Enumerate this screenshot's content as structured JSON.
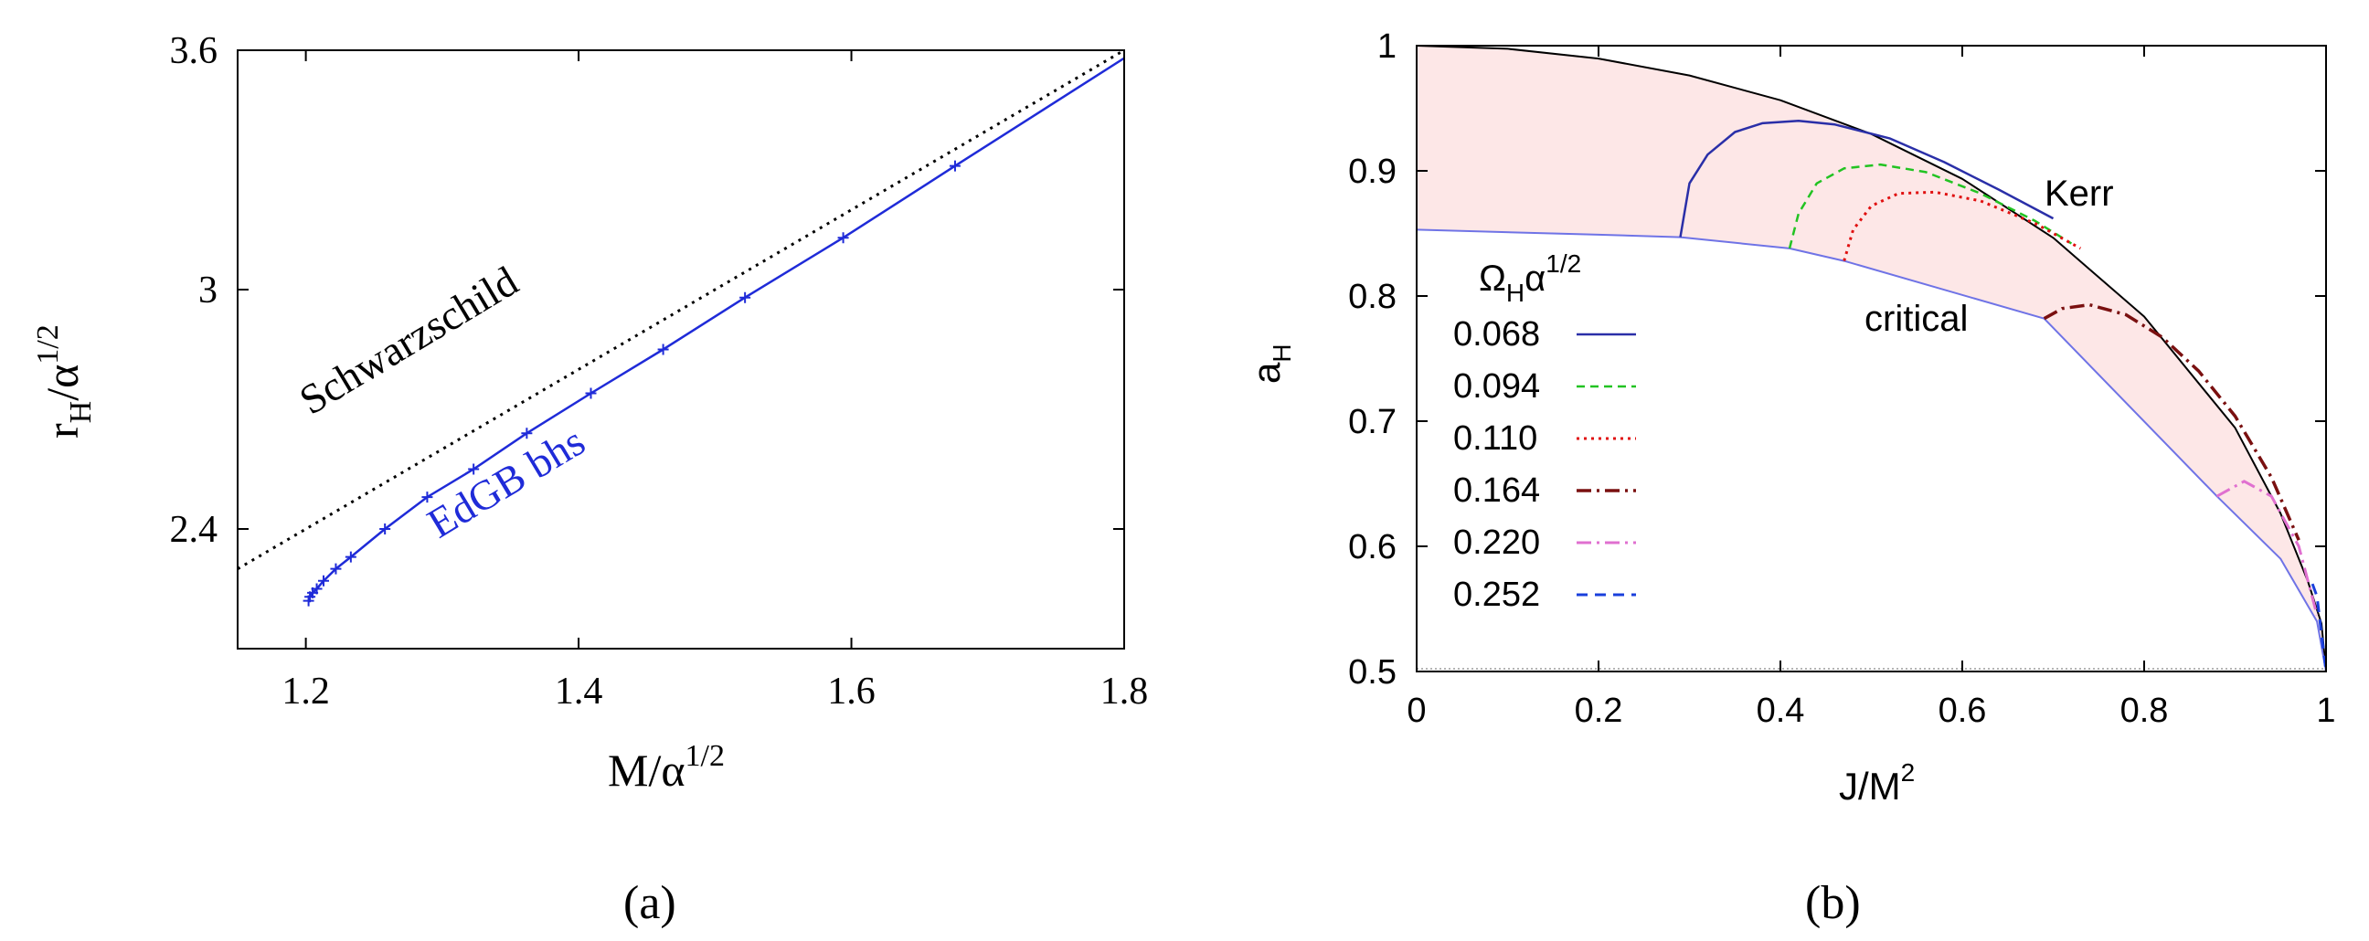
{
  "colors": {
    "axis": "#000000",
    "edgb_blue": "#1f2bd8",
    "fill_pink": "#fde7e7",
    "kerr_black": "#000000",
    "critical_blue": "#6f73e6",
    "base_gray": "#9a9a9a"
  },
  "panel_a": {
    "caption": "(a)",
    "xlabel_main": "M/α",
    "xlabel_sup": "1/2",
    "ylabel_main": "r",
    "ylabel_sub": "H",
    "ylabel_mid": "/α",
    "ylabel_sup": "1/2",
    "curve_label_schwarzschild": "Schwarzschild",
    "curve_label_edgb": "EdGB bhs",
    "xticks": [
      "1.2",
      "1.4",
      "1.6",
      "1.8"
    ],
    "yticks": [
      "2.4",
      "3",
      "3.6"
    ]
  },
  "panel_b": {
    "caption": "(b)",
    "xlabel_main": "J/M",
    "xlabel_sup": "2",
    "ylabel_main": "a",
    "ylabel_sub": "H",
    "label_kerr": "Kerr",
    "label_critical": "critical",
    "legend_title_main": "Ω",
    "legend_title_sub": "H",
    "legend_title_mid": "α",
    "legend_title_sup": "1/2",
    "legend_entries": [
      "0.068",
      "0.094",
      "0.110",
      "0.164",
      "0.220",
      "0.252"
    ],
    "xticks": [
      "0",
      "0.2",
      "0.4",
      "0.6",
      "0.8",
      "1"
    ],
    "yticks": [
      "0.5",
      "0.6",
      "0.7",
      "0.8",
      "0.9",
      "1"
    ]
  },
  "chart_data": [
    {
      "type": "line",
      "xlabel": "M/α^{1/2}",
      "ylabel": "r_H/α^{1/2}",
      "xlim": [
        1.15,
        1.8
      ],
      "ylim": [
        2.1,
        3.6
      ],
      "series": [
        {
          "name": "Schwarzschild",
          "style": "dotted",
          "x": [
            1.15,
            1.8
          ],
          "y": [
            2.3,
            3.6
          ]
        },
        {
          "name": "EdGB bhs",
          "style": "solid-with-markers",
          "x": [
            1.202,
            1.203,
            1.205,
            1.208,
            1.213,
            1.222,
            1.233,
            1.258,
            1.289,
            1.323,
            1.362,
            1.409,
            1.462,
            1.522,
            1.594,
            1.676,
            1.8
          ],
          "y": [
            2.22,
            2.23,
            2.24,
            2.25,
            2.27,
            2.3,
            2.33,
            2.4,
            2.48,
            2.55,
            2.64,
            2.74,
            2.85,
            2.98,
            3.13,
            3.31,
            3.58
          ]
        }
      ]
    },
    {
      "type": "line",
      "xlabel": "J/M^2",
      "ylabel": "a_H",
      "xlim": [
        0,
        1
      ],
      "ylim": [
        0.5,
        1
      ],
      "series": [
        {
          "name": "Kerr",
          "style": "solid",
          "x": [
            0,
            0.1,
            0.2,
            0.3,
            0.4,
            0.5,
            0.6,
            0.7,
            0.8,
            0.9,
            0.95,
            0.98,
            0.995,
            1.0
          ],
          "y": [
            1.0,
            0.9975,
            0.9897,
            0.9762,
            0.9564,
            0.9294,
            0.8936,
            0.8465,
            0.7836,
            0.6947,
            0.6262,
            0.5721,
            0.5383,
            0.5
          ]
        },
        {
          "name": "critical",
          "style": "solid",
          "x": [
            0,
            0.2,
            0.29,
            0.41,
            0.47,
            0.69,
            0.88,
            0.95,
            0.99,
            1.0
          ],
          "y": [
            0.853,
            0.849,
            0.847,
            0.838,
            0.828,
            0.782,
            0.64,
            0.59,
            0.54,
            0.5
          ]
        },
        {
          "name": "0.068",
          "style": "solid",
          "x": [
            0.29,
            0.3,
            0.32,
            0.35,
            0.38,
            0.42,
            0.46,
            0.52,
            0.58,
            0.64,
            0.7
          ],
          "y": [
            0.847,
            0.89,
            0.913,
            0.931,
            0.938,
            0.94,
            0.937,
            0.926,
            0.907,
            0.885,
            0.862
          ]
        },
        {
          "name": "0.094",
          "style": "dashed",
          "x": [
            0.41,
            0.42,
            0.44,
            0.47,
            0.51,
            0.56,
            0.62,
            0.68,
            0.72
          ],
          "y": [
            0.838,
            0.866,
            0.89,
            0.902,
            0.905,
            0.899,
            0.882,
            0.86,
            0.842
          ]
        },
        {
          "name": "0.110",
          "style": "dotted",
          "x": [
            0.47,
            0.48,
            0.5,
            0.53,
            0.57,
            0.62,
            0.68,
            0.73
          ],
          "y": [
            0.828,
            0.853,
            0.872,
            0.882,
            0.883,
            0.876,
            0.858,
            0.838
          ]
        },
        {
          "name": "0.164",
          "style": "dash-dot",
          "x": [
            0.69,
            0.71,
            0.74,
            0.78,
            0.82,
            0.86,
            0.9,
            0.94,
            0.97
          ],
          "y": [
            0.782,
            0.79,
            0.793,
            0.785,
            0.767,
            0.74,
            0.704,
            0.655,
            0.605
          ]
        },
        {
          "name": "0.220",
          "style": "dash-dot",
          "x": [
            0.88,
            0.91,
            0.94,
            0.97,
            0.99
          ],
          "y": [
            0.64,
            0.652,
            0.64,
            0.6,
            0.545
          ]
        },
        {
          "name": "0.252",
          "style": "dashed",
          "x": [
            0.985,
            0.99,
            0.995,
            1.0
          ],
          "y": [
            0.57,
            0.56,
            0.53,
            0.5
          ]
        }
      ]
    }
  ]
}
